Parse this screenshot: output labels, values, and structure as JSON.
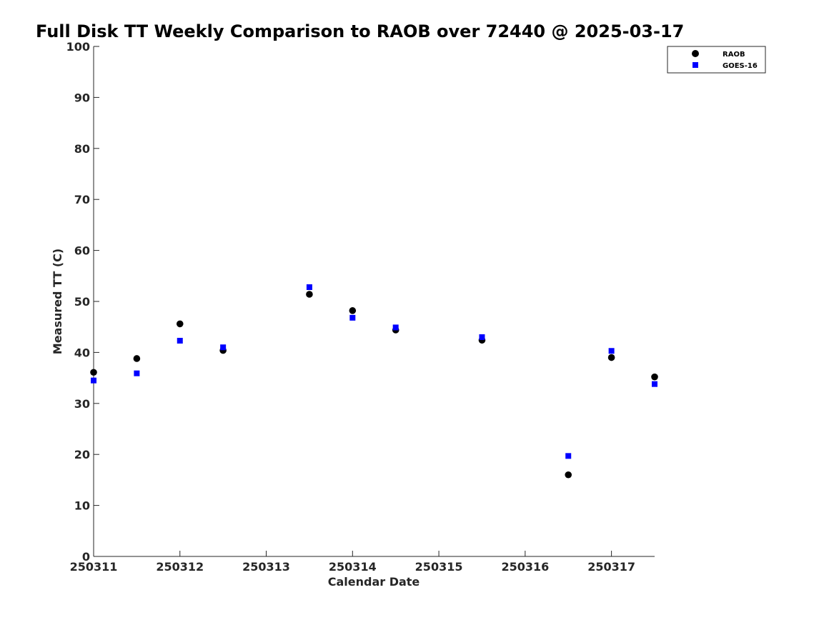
{
  "chart_data": {
    "type": "scatter",
    "title": "Full Disk TT Weekly Comparison to RAOB over 72440 @ 2025-03-17",
    "xlabel": "Calendar Date",
    "ylabel": "Measured TT (C)",
    "xlim": [
      250311,
      250317.5
    ],
    "ylim": [
      0,
      100
    ],
    "x_ticks": [
      250311,
      250312,
      250313,
      250314,
      250315,
      250316,
      250317
    ],
    "x_tick_labels": [
      "250311",
      "250312",
      "250313",
      "250314",
      "250315",
      "250316",
      "250317"
    ],
    "y_ticks": [
      0,
      10,
      20,
      30,
      40,
      50,
      60,
      70,
      80,
      90,
      100
    ],
    "y_tick_labels": [
      "0",
      "10",
      "20",
      "30",
      "40",
      "50",
      "60",
      "70",
      "80",
      "90",
      "100"
    ],
    "grid": false,
    "legend_position": "top-right",
    "series": [
      {
        "name": "RAOB",
        "marker": "circle",
        "color": "#000000",
        "points": [
          {
            "x": 250311.0,
            "y": 36.1
          },
          {
            "x": 250311.5,
            "y": 38.8
          },
          {
            "x": 250312.0,
            "y": 45.6
          },
          {
            "x": 250312.5,
            "y": 40.4
          },
          {
            "x": 250313.5,
            "y": 51.4
          },
          {
            "x": 250314.0,
            "y": 48.2
          },
          {
            "x": 250314.5,
            "y": 44.4
          },
          {
            "x": 250315.5,
            "y": 42.4
          },
          {
            "x": 250316.5,
            "y": 16.0
          },
          {
            "x": 250317.0,
            "y": 39.0
          },
          {
            "x": 250317.5,
            "y": 35.2
          }
        ]
      },
      {
        "name": "GOES-16",
        "marker": "square",
        "color": "#0000ff",
        "points": [
          {
            "x": 250311.0,
            "y": 34.5
          },
          {
            "x": 250311.5,
            "y": 35.9
          },
          {
            "x": 250312.0,
            "y": 42.3
          },
          {
            "x": 250312.5,
            "y": 41.0
          },
          {
            "x": 250313.5,
            "y": 52.8
          },
          {
            "x": 250314.0,
            "y": 46.8
          },
          {
            "x": 250314.5,
            "y": 44.9
          },
          {
            "x": 250315.5,
            "y": 43.0
          },
          {
            "x": 250316.5,
            "y": 19.7
          },
          {
            "x": 250317.0,
            "y": 40.3
          },
          {
            "x": 250317.5,
            "y": 33.8
          }
        ]
      }
    ]
  }
}
